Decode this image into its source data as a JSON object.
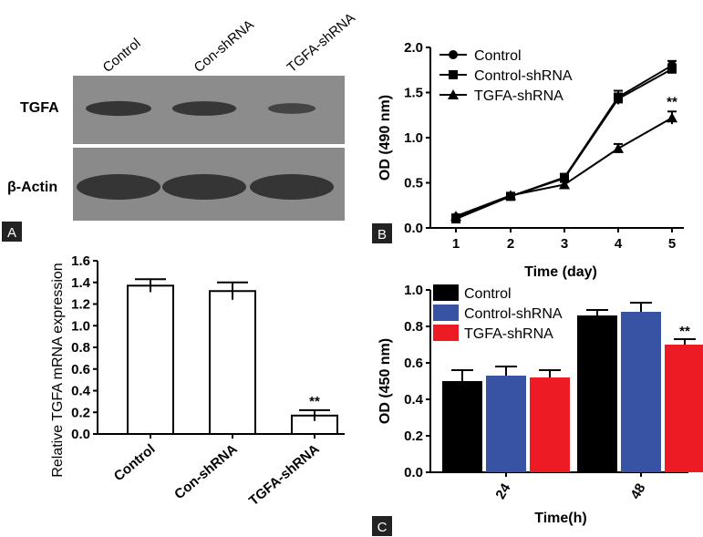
{
  "panel_tags": [
    "A",
    "B",
    "C"
  ],
  "blot": {
    "lanes": [
      "Control",
      "Con-shRNA",
      "TGFA-shRNA"
    ],
    "rows": [
      "TGFA",
      "β-Actin"
    ],
    "tgfa_intensity": [
      0.9,
      0.88,
      0.65
    ],
    "actin_intensity": [
      1.0,
      1.0,
      1.0
    ],
    "colors": {
      "background": "#8c8c8c",
      "band": "#2b2b2b",
      "separator": "#ffffff"
    }
  },
  "chart_data": [
    {
      "id": "mrna",
      "type": "bar",
      "ylabel": "Relative TGFA mRNA expression",
      "xlabel": "",
      "categories": [
        "Control",
        "Con-shRNA",
        "TGFA-shRNA"
      ],
      "values": [
        1.37,
        1.32,
        0.17
      ],
      "errors": [
        0.06,
        0.08,
        0.05
      ],
      "ylim": [
        0,
        1.6
      ],
      "yticks": [
        "0.0",
        "0.2",
        "0.4",
        "0.6",
        "0.8",
        "1.0",
        "1.2",
        "1.4",
        "1.6"
      ],
      "annotations": [
        {
          "category": "TGFA-shRNA",
          "text": "**"
        }
      ],
      "colors": {
        "fill": "#ffffff",
        "stroke": "#000000"
      }
    },
    {
      "id": "growth",
      "type": "line",
      "ylabel": "OD (490 nm)",
      "xlabel": "Time (day)",
      "x": [
        1,
        2,
        3,
        4,
        5
      ],
      "xticks": [
        "1",
        "2",
        "3",
        "4",
        "5"
      ],
      "ylim": [
        0,
        2.0
      ],
      "yticks": [
        "0.0",
        "0.5",
        "1.0",
        "1.5",
        "2.0"
      ],
      "series": [
        {
          "name": "Control",
          "marker": "circle",
          "values": [
            0.12,
            0.35,
            0.56,
            1.45,
            1.8
          ],
          "errors": [
            0.02,
            0.02,
            0.04,
            0.07,
            0.05
          ]
        },
        {
          "name": "Control-shRNA",
          "marker": "square",
          "values": [
            0.1,
            0.35,
            0.55,
            1.43,
            1.76
          ],
          "errors": [
            0.02,
            0.02,
            0.04,
            0.06,
            0.05
          ]
        },
        {
          "name": "TGFA-shRNA",
          "marker": "triangle",
          "values": [
            0.13,
            0.36,
            0.48,
            0.88,
            1.22
          ],
          "errors": [
            0.02,
            0.02,
            0.03,
            0.05,
            0.07
          ]
        }
      ],
      "annotations": [
        {
          "x": 5,
          "text": "**"
        }
      ],
      "legend": "top-left"
    },
    {
      "id": "od450",
      "type": "bar",
      "ylabel": "OD (450 nm)",
      "xlabel": "Time(h)",
      "categories": [
        "24",
        "48"
      ],
      "ylim": [
        0,
        1.0
      ],
      "yticks": [
        "0.0",
        "0.2",
        "0.4",
        "0.6",
        "0.8",
        "1.0"
      ],
      "series": [
        {
          "name": "Control",
          "color": "#000000",
          "values": [
            0.5,
            0.86
          ],
          "errors": [
            0.06,
            0.03
          ]
        },
        {
          "name": "Control-shRNA",
          "color": "#3953a4",
          "values": [
            0.53,
            0.88
          ],
          "errors": [
            0.05,
            0.05
          ]
        },
        {
          "name": "TGFA-shRNA",
          "color": "#ed1c24",
          "values": [
            0.52,
            0.7
          ],
          "errors": [
            0.04,
            0.03
          ]
        }
      ],
      "annotations": [
        {
          "category": "48",
          "series": "TGFA-shRNA",
          "text": "**"
        }
      ],
      "legend": "top-left"
    }
  ]
}
